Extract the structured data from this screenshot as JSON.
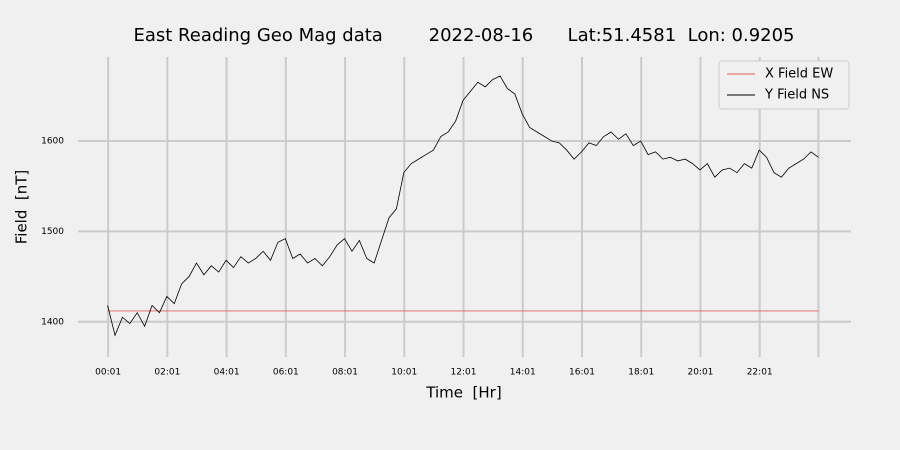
{
  "chart_data": {
    "type": "line",
    "title": "East Reading Geo Mag data        2022-08-16      Lat:51.4581  Lon: 0.9205",
    "x_label": "Time  [Hr]",
    "y_label": "Field  [nT]",
    "xlim": [
      -1.0,
      25.1
    ],
    "ylim": [
      1361,
      1693
    ],
    "xticks": [
      {
        "value": 0.0167,
        "label": "00:01"
      },
      {
        "value": 2.0167,
        "label": "02:01"
      },
      {
        "value": 4.0167,
        "label": "04:01"
      },
      {
        "value": 6.0167,
        "label": "06:01"
      },
      {
        "value": 8.0167,
        "label": "08:01"
      },
      {
        "value": 10.0167,
        "label": "10:01"
      },
      {
        "value": 12.0167,
        "label": "12:01"
      },
      {
        "value": 14.0167,
        "label": "14:01"
      },
      {
        "value": 16.0167,
        "label": "16:01"
      },
      {
        "value": 18.0167,
        "label": "18:01"
      },
      {
        "value": 20.0167,
        "label": "20:01"
      },
      {
        "value": 22.0167,
        "label": "22:01"
      },
      {
        "value": 24,
        "label": null
      }
    ],
    "yticks": [
      1400,
      1500,
      1600
    ],
    "grid": true,
    "legend": "upper right",
    "series": [
      {
        "name": "X Field EW",
        "color": "#e06060",
        "x": [
          0,
          24
        ],
        "values": [
          1412,
          1412
        ]
      },
      {
        "name": "Y Field NS",
        "color": "#000000",
        "x": [
          0,
          0.25,
          0.5,
          0.75,
          1,
          1.25,
          1.5,
          1.75,
          2,
          2.25,
          2.5,
          2.75,
          3,
          3.25,
          3.5,
          3.75,
          4,
          4.25,
          4.5,
          4.75,
          5,
          5.25,
          5.5,
          5.75,
          6,
          6.25,
          6.5,
          6.75,
          7,
          7.25,
          7.5,
          7.75,
          8,
          8.25,
          8.5,
          8.75,
          9,
          9.25,
          9.5,
          9.75,
          10,
          10.25,
          10.5,
          10.75,
          11,
          11.25,
          11.5,
          11.75,
          12,
          12.25,
          12.5,
          12.75,
          13,
          13.25,
          13.5,
          13.75,
          14,
          14.25,
          14.5,
          14.75,
          15,
          15.25,
          15.5,
          15.75,
          16,
          16.25,
          16.5,
          16.75,
          17,
          17.25,
          17.5,
          17.75,
          18,
          18.25,
          18.5,
          18.75,
          19,
          19.25,
          19.5,
          19.75,
          20,
          20.25,
          20.5,
          20.75,
          21,
          21.25,
          21.5,
          21.75,
          22,
          22.25,
          22.5,
          22.75,
          23,
          23.25,
          23.5,
          23.75,
          24
        ],
        "values": [
          1418,
          1385,
          1405,
          1398,
          1410,
          1395,
          1418,
          1410,
          1428,
          1420,
          1442,
          1450,
          1465,
          1452,
          1462,
          1455,
          1468,
          1460,
          1472,
          1465,
          1470,
          1478,
          1468,
          1488,
          1492,
          1470,
          1475,
          1465,
          1470,
          1462,
          1472,
          1485,
          1492,
          1478,
          1490,
          1470,
          1465,
          1490,
          1515,
          1525,
          1565,
          1575,
          1580,
          1585,
          1590,
          1605,
          1610,
          1622,
          1645,
          1655,
          1665,
          1660,
          1668,
          1672,
          1658,
          1652,
          1630,
          1615,
          1610,
          1605,
          1600,
          1598,
          1590,
          1580,
          1588,
          1598,
          1595,
          1605,
          1610,
          1602,
          1608,
          1595,
          1600,
          1585,
          1588,
          1580,
          1582,
          1578,
          1580,
          1575,
          1568,
          1575,
          1560,
          1568,
          1570,
          1565,
          1575,
          1570,
          1590,
          1582,
          1565,
          1560,
          1570,
          1575,
          1580,
          1588,
          1582
        ]
      }
    ]
  }
}
